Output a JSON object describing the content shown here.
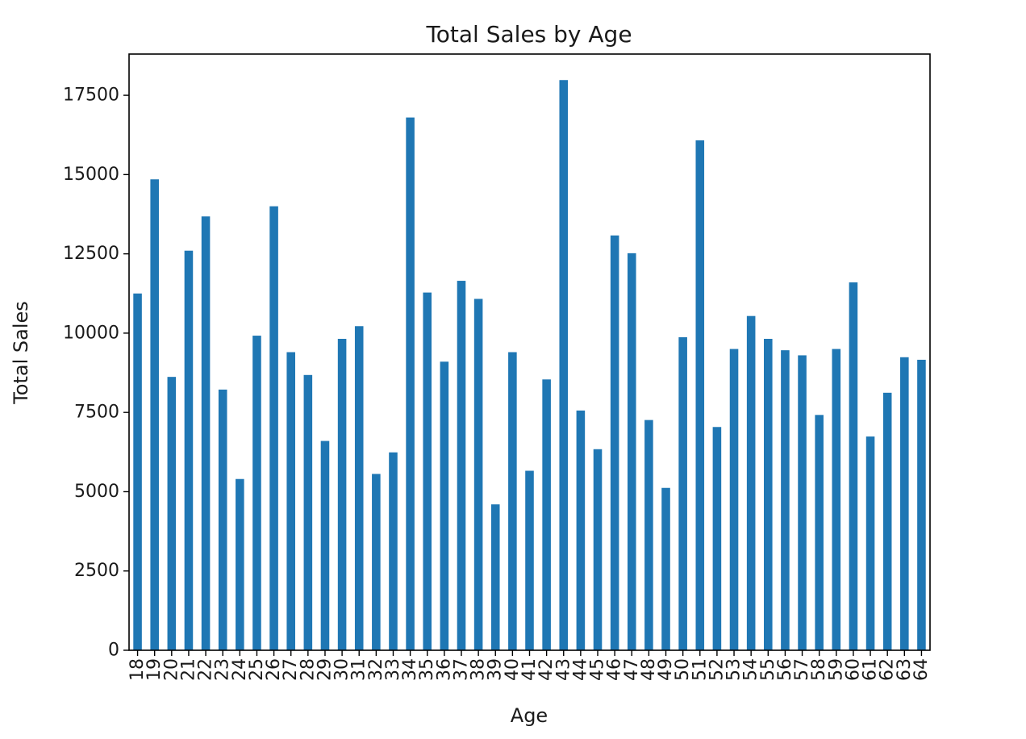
{
  "chart_data": {
    "type": "bar",
    "title": "Total Sales by Age",
    "xlabel": "Age",
    "ylabel": "Total Sales",
    "categories": [
      "18",
      "19",
      "20",
      "21",
      "22",
      "23",
      "24",
      "25",
      "26",
      "27",
      "28",
      "29",
      "30",
      "31",
      "32",
      "33",
      "34",
      "35",
      "36",
      "37",
      "38",
      "39",
      "40",
      "41",
      "42",
      "43",
      "44",
      "45",
      "46",
      "47",
      "48",
      "49",
      "50",
      "51",
      "52",
      "53",
      "54",
      "55",
      "56",
      "57",
      "58",
      "59",
      "60",
      "61",
      "62",
      "63",
      "64"
    ],
    "values": [
      11250,
      14850,
      8620,
      12600,
      13680,
      8220,
      5400,
      9920,
      14000,
      9400,
      8680,
      6600,
      9820,
      10220,
      5560,
      6240,
      16800,
      11280,
      9100,
      11650,
      11080,
      4600,
      9400,
      5660,
      8540,
      17980,
      7560,
      6340,
      13080,
      12520,
      7260,
      5120,
      9870,
      16080,
      7040,
      9500,
      10540,
      9820,
      9460,
      9300,
      7420,
      9500,
      11600,
      6740,
      8120,
      9240,
      9160
    ],
    "ylim": [
      0,
      18800
    ],
    "yticks": [
      0,
      2500,
      5000,
      7500,
      10000,
      12500,
      15000,
      17500
    ],
    "bar_color": "#1f77b4",
    "grid": false,
    "legend": "none"
  }
}
